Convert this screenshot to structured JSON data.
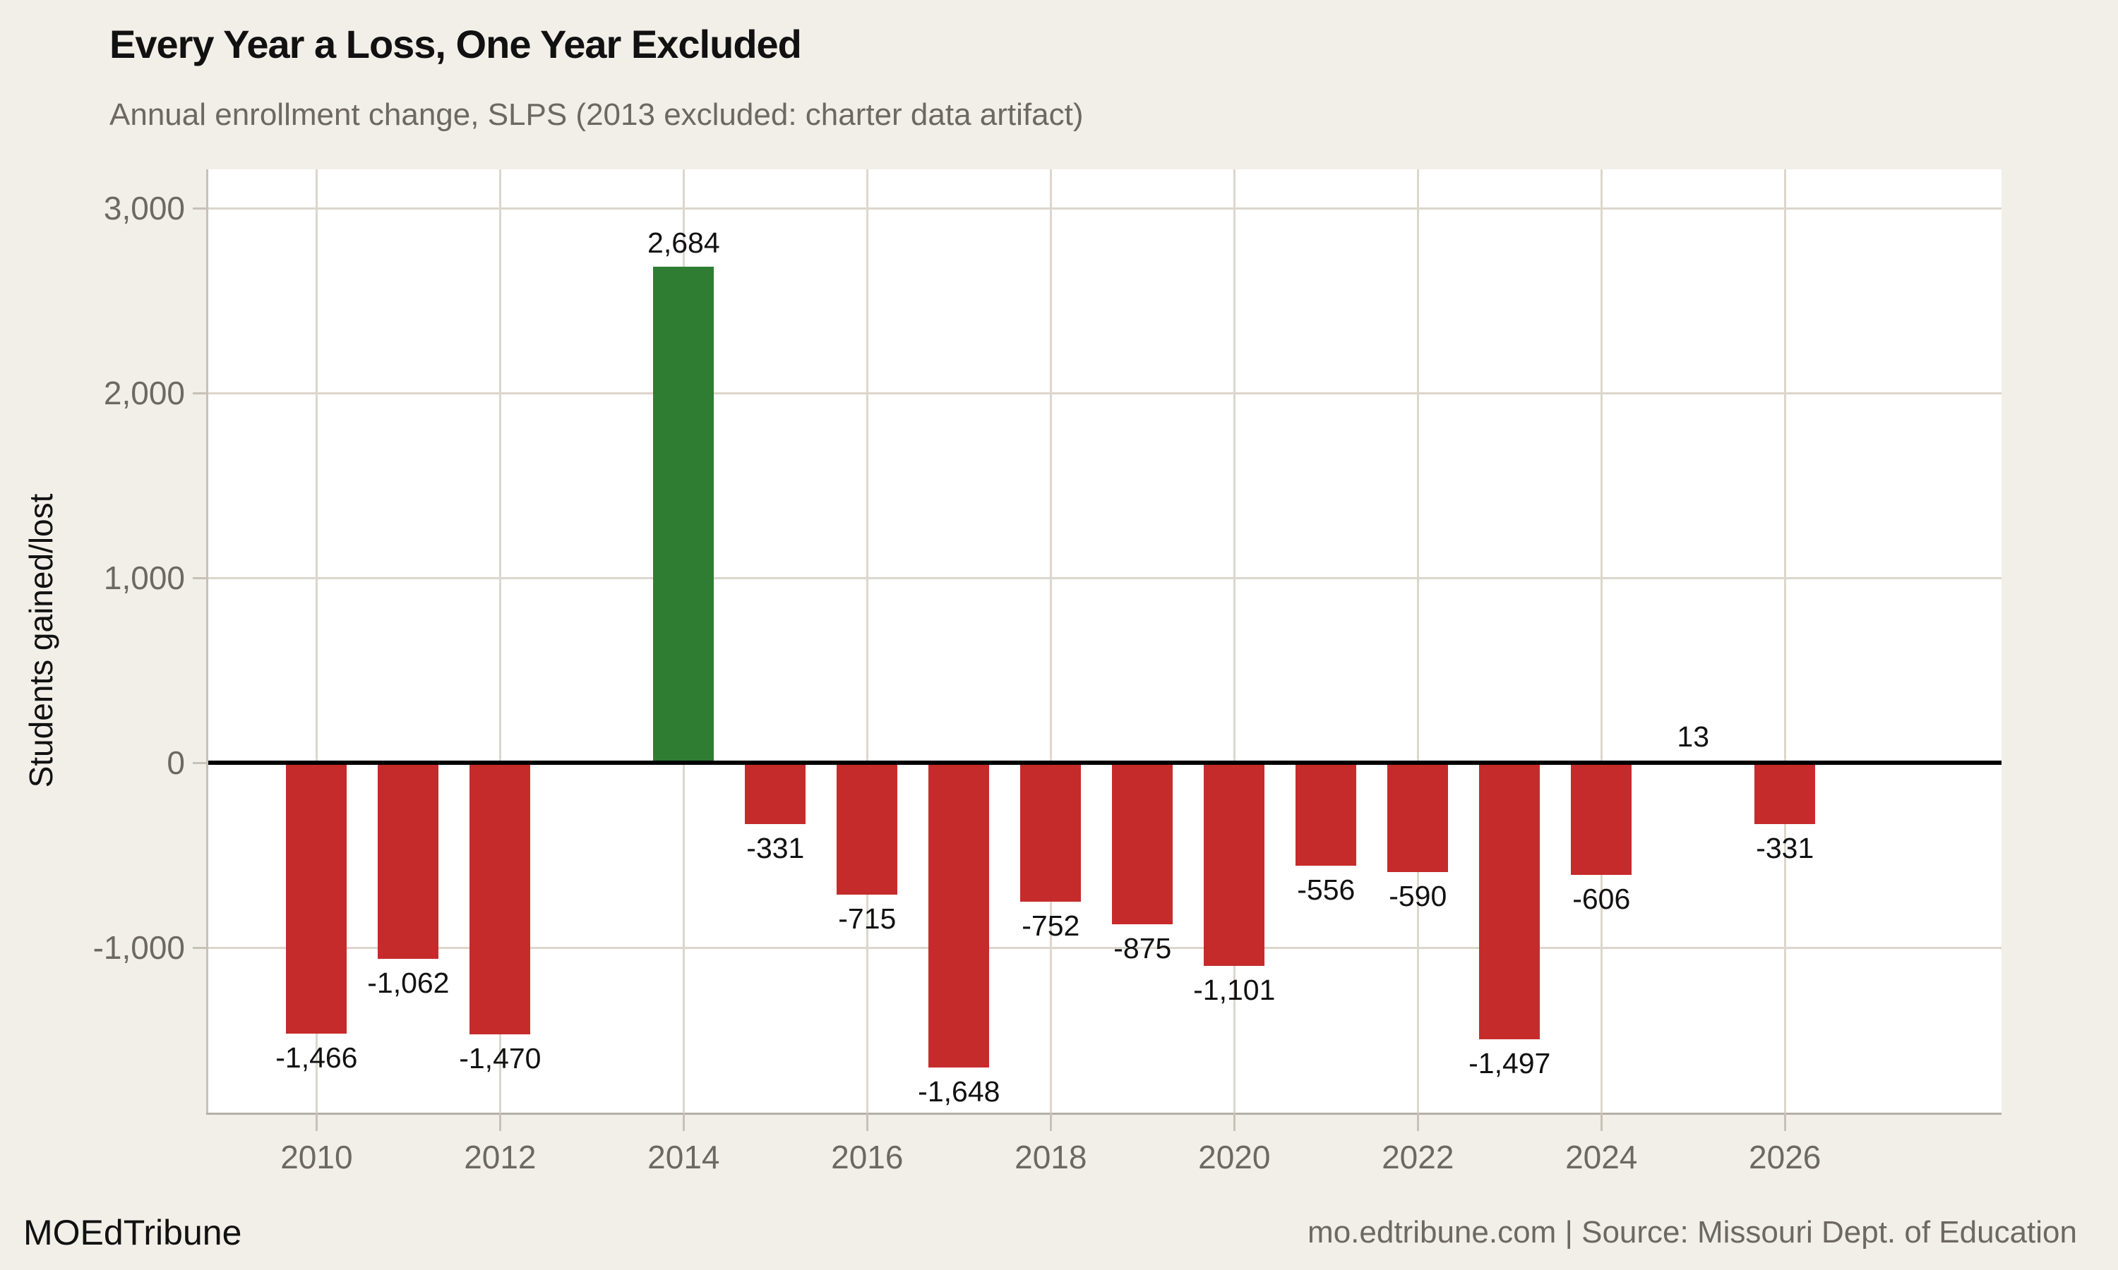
{
  "title": "Every Year a Loss, One Year Excluded",
  "subtitle": "Annual enrollment change, SLPS (2013 excluded: charter data artifact)",
  "footer": {
    "brand": "MOEdTribune",
    "source": "mo.edtribune.com | Source: Missouri Dept. of Education"
  },
  "colors": {
    "background": "#f2efe9",
    "plot_background": "#ffffff",
    "negative_bar": "#c62b2c",
    "positive_bar": "#2f7d33",
    "gridline": "#dcd6cc",
    "axis_line": "#c7c1b7",
    "axis_line_bottom": "#b5afa5",
    "zero_line": "#000000",
    "muted_text": "#6d6861",
    "ink_text": "#111111"
  },
  "chart_data": {
    "type": "bar",
    "title": "Every Year a Loss, One Year Excluded",
    "subtitle": "Annual enrollment change, SLPS (2013 excluded: charter data artifact)",
    "xlabel": "",
    "ylabel": "Students gained/lost",
    "excluded_year": 2013,
    "grid": true,
    "legend": "none",
    "x_range": [
      2008.82,
      2028.36
    ],
    "y_range": [
      -1893,
      3210
    ],
    "x_ticks": [
      {
        "value": 2010,
        "label": "2010"
      },
      {
        "value": 2012,
        "label": "2012"
      },
      {
        "value": 2014,
        "label": "2014"
      },
      {
        "value": 2016,
        "label": "2016"
      },
      {
        "value": 2018,
        "label": "2018"
      },
      {
        "value": 2020,
        "label": "2020"
      },
      {
        "value": 2022,
        "label": "2022"
      },
      {
        "value": 2024,
        "label": "2024"
      },
      {
        "value": 2026,
        "label": "2026"
      }
    ],
    "y_ticks": [
      {
        "value": -1000,
        "label": "-1,000"
      },
      {
        "value": 0,
        "label": "0"
      },
      {
        "value": 1000,
        "label": "1,000"
      },
      {
        "value": 2000,
        "label": "2,000"
      },
      {
        "value": 3000,
        "label": "3,000"
      }
    ],
    "points": [
      {
        "year": 2010,
        "value": -1466,
        "label": "-1,466",
        "color": "negative"
      },
      {
        "year": 2011,
        "value": -1062,
        "label": "-1,062",
        "color": "negative"
      },
      {
        "year": 2012,
        "value": -1470,
        "label": "-1,470",
        "color": "negative"
      },
      {
        "year": 2014,
        "value": 2684,
        "label": "2,684",
        "color": "positive"
      },
      {
        "year": 2015,
        "value": -331,
        "label": "-331",
        "color": "negative"
      },
      {
        "year": 2016,
        "value": -715,
        "label": "-715",
        "color": "negative"
      },
      {
        "year": 2017,
        "value": -1648,
        "label": "-1,648",
        "color": "negative"
      },
      {
        "year": 2018,
        "value": -752,
        "label": "-752",
        "color": "negative"
      },
      {
        "year": 2019,
        "value": -875,
        "label": "-875",
        "color": "negative"
      },
      {
        "year": 2020,
        "value": -1101,
        "label": "-1,101",
        "color": "negative"
      },
      {
        "year": 2021,
        "value": -556,
        "label": "-556",
        "color": "negative"
      },
      {
        "year": 2022,
        "value": -590,
        "label": "-590",
        "color": "negative"
      },
      {
        "year": 2023,
        "value": -1497,
        "label": "-1,497",
        "color": "negative"
      },
      {
        "year": 2024,
        "value": -606,
        "label": "-606",
        "color": "negative"
      },
      {
        "year": 2025,
        "value": 13,
        "label": "13",
        "color": "positive"
      },
      {
        "year": 2026,
        "value": -331,
        "label": "-331",
        "color": "negative"
      }
    ]
  }
}
